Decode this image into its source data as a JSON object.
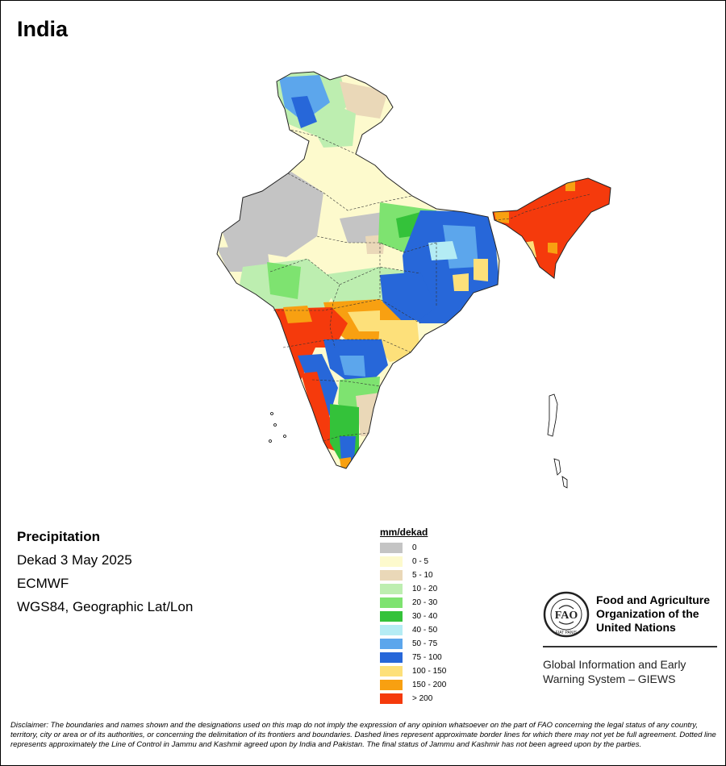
{
  "map": {
    "title": "India",
    "variable": "Precipitation",
    "period": "Dekad 3 May 2025",
    "source": "ECMWF",
    "projection": "WGS84, Geographic Lat/Lon"
  },
  "legend": {
    "unit": "mm/dekad",
    "classes": [
      {
        "label": "0",
        "color": "#c4c4c4"
      },
      {
        "label": "0 - 5",
        "color": "#fdfacd"
      },
      {
        "label": "5 - 10",
        "color": "#ead8b8"
      },
      {
        "label": "10 - 20",
        "color": "#bdeeb0"
      },
      {
        "label": "20 - 30",
        "color": "#7ee370"
      },
      {
        "label": "30 - 40",
        "color": "#34c23a"
      },
      {
        "label": "40 - 50",
        "color": "#b4ecf4"
      },
      {
        "label": "50 - 75",
        "color": "#5ca6ec"
      },
      {
        "label": "75 - 100",
        "color": "#2767d9"
      },
      {
        "label": "100 - 150",
        "color": "#fde07a"
      },
      {
        "label": "150 - 200",
        "color": "#f8a011"
      },
      {
        "label": "> 200",
        "color": "#f53a0c"
      }
    ]
  },
  "organization": {
    "name": "Food and Agriculture\nOrganization of the\nUnited Nations",
    "logo_text": "FAO",
    "logo_motto": "FIAT PANIS",
    "system": "Global Information and Early\nWarning System – GIEWS"
  },
  "disclaimer": "Disclaimer: The boundaries and names shown and the designations used on this map do not imply the expression of any opinion whatsoever on the part of FAO concerning the legal status of any country, territory, city or area or of its authorities, or concerning the delimitation of its frontiers and boundaries. Dashed lines represent approximate border lines for which there may not yet be full agreement. Dotted line represents approximately the Line of Control in Jammu and Kashmir agreed upon by India and Pakistan. The final status of Jammu and Kashmir has not been agreed upon by the parties."
}
